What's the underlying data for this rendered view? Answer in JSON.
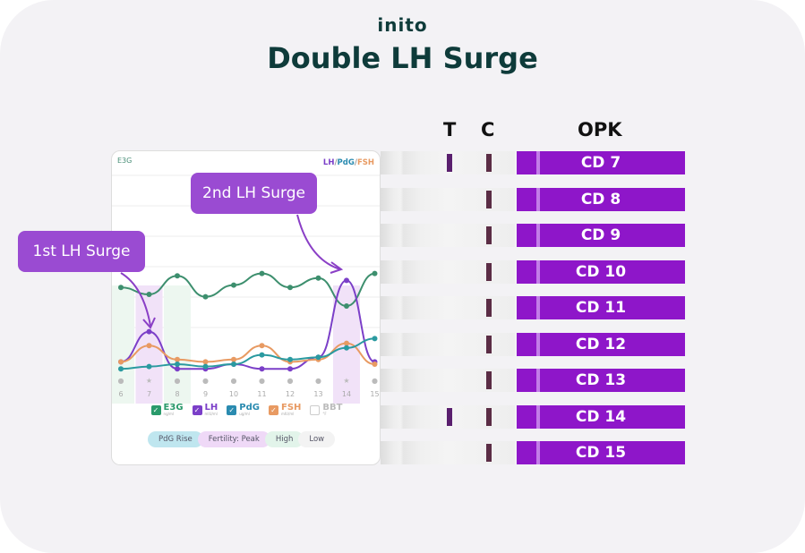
{
  "logo": "inito",
  "title": "Double LH Surge",
  "headers": {
    "t": "T",
    "c": "C",
    "opk": "OPK"
  },
  "chart": {
    "left_axis": "E3G",
    "right_axis_parts": [
      "LH",
      "/",
      "PdG",
      "/",
      "FSH"
    ],
    "days": [
      "6",
      "7",
      "8",
      "9",
      "10",
      "11",
      "12",
      "13",
      "14",
      "15"
    ],
    "star_days": [
      "7",
      "14"
    ],
    "legend": [
      {
        "label": "E3G",
        "unit": "ng/ml",
        "checked": true,
        "color": "#2a9a6b"
      },
      {
        "label": "LH",
        "unit": "mIU/ml",
        "checked": true,
        "color": "#7b3fc8"
      },
      {
        "label": "PdG",
        "unit": "ug/ml",
        "checked": true,
        "color": "#2a8bb0"
      },
      {
        "label": "FSH",
        "unit": "mIU/ml",
        "checked": true,
        "color": "#e89a62"
      },
      {
        "label": "BBT",
        "unit": "°F",
        "checked": false,
        "color": "#bbb"
      }
    ],
    "pills": [
      {
        "label": "PdG Rise",
        "color": "#bfe6ef"
      },
      {
        "label": "Fertility: Peak",
        "color": "#efd9f7"
      },
      {
        "label": "High",
        "color": "#e2f4ea"
      },
      {
        "label": "Low",
        "color": "#f3f3f3"
      }
    ],
    "callouts": {
      "first": "1st LH Surge",
      "second": "2nd LH Surge"
    }
  },
  "chart_data": {
    "type": "line",
    "x": [
      6,
      7,
      8,
      9,
      10,
      11,
      12,
      13,
      14,
      15
    ],
    "xlabel": "",
    "series": [
      {
        "name": "E3G",
        "color": "#3d8f6e",
        "values": [
          48,
          45,
          53,
          44,
          49,
          54,
          48,
          52,
          40,
          54
        ]
      },
      {
        "name": "LH",
        "color": "#7b3fc8",
        "values": [
          16,
          29,
          13,
          13,
          15,
          13,
          13,
          18,
          51,
          16
        ]
      },
      {
        "name": "FSH",
        "color": "#e89a62",
        "values": [
          16,
          23,
          17,
          16,
          17,
          23,
          16,
          17,
          24,
          15
        ]
      },
      {
        "name": "PdG",
        "color": "#2a9aa0",
        "values": [
          13,
          14,
          15,
          14,
          15,
          19,
          17,
          18,
          22,
          26
        ]
      }
    ],
    "fertility": {
      "6": "high",
      "7": "peak",
      "8": "high",
      "14": "peak"
    }
  },
  "strips": [
    {
      "label": "CD 7",
      "t_line": true
    },
    {
      "label": "CD 8",
      "t_line": false
    },
    {
      "label": "CD 9",
      "t_line": false
    },
    {
      "label": "CD 10",
      "t_line": false
    },
    {
      "label": "CD 11",
      "t_line": false
    },
    {
      "label": "CD 12",
      "t_line": false
    },
    {
      "label": "CD 13",
      "t_line": false
    },
    {
      "label": "CD 14",
      "t_line": true
    },
    {
      "label": "CD 15",
      "t_line": false
    }
  ]
}
